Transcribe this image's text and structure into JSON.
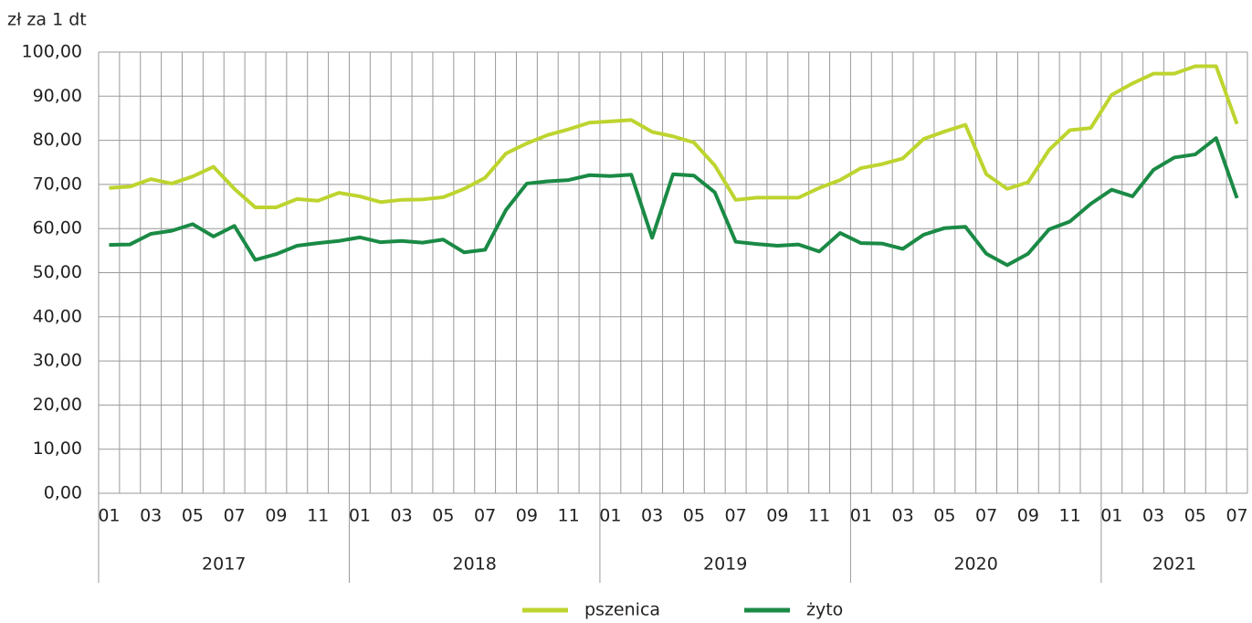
{
  "chart_data": {
    "type": "line",
    "y_label": "zł za 1 dt",
    "categories": [
      "01",
      null,
      "03",
      null,
      "05",
      null,
      "07",
      null,
      "09",
      null,
      "11",
      null,
      "01",
      null,
      "03",
      null,
      "05",
      null,
      "07",
      null,
      "09",
      null,
      "11",
      null,
      "01",
      null,
      "03",
      null,
      "05",
      null,
      "07",
      null,
      "09",
      null,
      "11",
      null,
      "01",
      null,
      "03",
      null,
      "05",
      null,
      "07",
      null,
      "09",
      null,
      "11",
      null,
      "01",
      null,
      "03",
      null,
      "05",
      null,
      "07"
    ],
    "year_groups": [
      "2017",
      "2018",
      "2019",
      "2020",
      "2021"
    ],
    "series": [
      {
        "name": "pszenica",
        "color": "#bed42f",
        "values": [
          69.2,
          69.5,
          71.2,
          70.2,
          71.8,
          74,
          69,
          64.8,
          64.8,
          66.7,
          66.3,
          68.1,
          67.3,
          66,
          66.5,
          66.6,
          67.1,
          69,
          71.5,
          77,
          79.3,
          81.2,
          82.5,
          84,
          84.3,
          84.6,
          81.9,
          80.9,
          79.5,
          74.3,
          66.5,
          67,
          67,
          67,
          69.2,
          71,
          73.7,
          74.6,
          75.9,
          80.3,
          82,
          83.5,
          72.3,
          69,
          70.5,
          77.8,
          82.3,
          82.8,
          90.3,
          92.9,
          95.1,
          95.1,
          96.8,
          96.8,
          83.7
        ]
      },
      {
        "name": "żyto",
        "color": "#1a8a45",
        "values": [
          56.3,
          56.4,
          58.8,
          59.5,
          61,
          58.2,
          60.6,
          52.9,
          54.2,
          56.1,
          56.7,
          57.2,
          58,
          56.9,
          57.2,
          56.8,
          57.5,
          54.6,
          55.2,
          64.2,
          70.2,
          70.7,
          71,
          72.1,
          71.9,
          72.2,
          57.9,
          72.3,
          72,
          68.2,
          57,
          56.5,
          56.1,
          56.4,
          54.8,
          59,
          56.7,
          56.6,
          55.4,
          58.6,
          60.1,
          60.4,
          54.3,
          51.7,
          54.3,
          59.8,
          61.6,
          65.6,
          68.8,
          67.3,
          73.3,
          76.1,
          76.8,
          80.5,
          66.9
        ]
      }
    ],
    "ylim": [
      0,
      100
    ],
    "yticks": [
      {
        "value": 0,
        "label": "0,00"
      },
      {
        "value": 10,
        "label": "10,00"
      },
      {
        "value": 20,
        "label": "20,00"
      },
      {
        "value": 30,
        "label": "30,00"
      },
      {
        "value": 40,
        "label": "40,00"
      },
      {
        "value": 50,
        "label": "50,00"
      },
      {
        "value": 60,
        "label": "60,00"
      },
      {
        "value": 70,
        "label": "70,00"
      },
      {
        "value": 80,
        "label": "80,00"
      },
      {
        "value": 90,
        "label": "90,00"
      },
      {
        "value": 100,
        "label": "100,00"
      }
    ],
    "grid": true,
    "legend": "bottom"
  }
}
